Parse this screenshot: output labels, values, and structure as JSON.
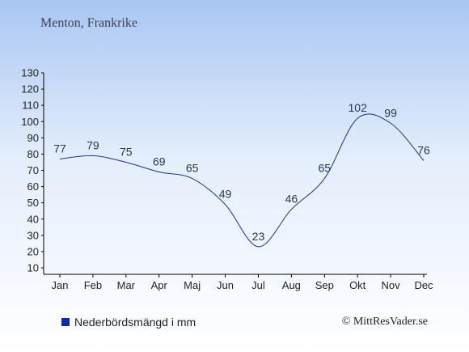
{
  "title": "Menton, Frankrike",
  "legend_label": "Nederbördsmängd i mm",
  "credit": "© MittResVader.se",
  "colors": {
    "line": "#1e2f8a",
    "swatch": "#1426a8"
  },
  "chart_data": {
    "type": "line",
    "title": "Menton, Frankrike",
    "categories": [
      "Jan",
      "Feb",
      "Mar",
      "Apr",
      "Maj",
      "Jun",
      "Jul",
      "Aug",
      "Sep",
      "Okt",
      "Nov",
      "Dec"
    ],
    "series": [
      {
        "name": "Nederbördsmängd i mm",
        "values": [
          77,
          79,
          75,
          69,
          65,
          49,
          23,
          46,
          65,
          102,
          99,
          76
        ]
      }
    ],
    "yticks": [
      10,
      20,
      30,
      40,
      50,
      60,
      70,
      80,
      90,
      100,
      110,
      120,
      130
    ],
    "ylim": [
      10,
      130
    ],
    "grid": false,
    "legend_position": "bottom-left"
  }
}
